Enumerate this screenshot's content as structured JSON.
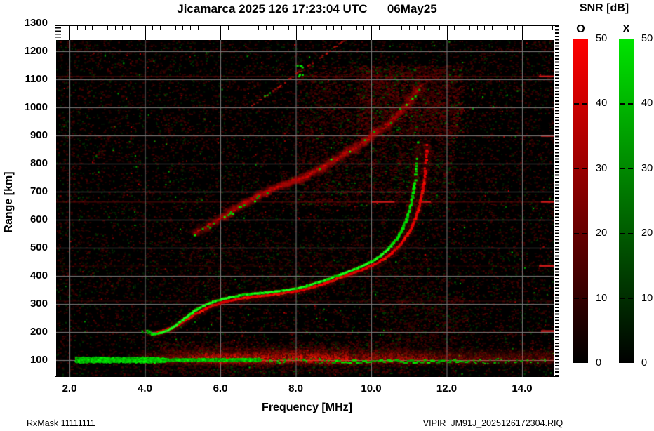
{
  "title": {
    "text": "Jicamarca 2025 126 17:23:04 UTC      06May25"
  },
  "axes": {
    "x": {
      "label": "Frequency [MHz]",
      "ticks": [
        {
          "label": "2.0",
          "mhz": 2
        },
        {
          "label": "4.0",
          "mhz": 4
        },
        {
          "label": "6.0",
          "mhz": 6
        },
        {
          "label": "8.0",
          "mhz": 8
        },
        {
          "label": "10.0",
          "mhz": 10
        },
        {
          "label": "12.0",
          "mhz": 12
        },
        {
          "label": "14.0",
          "mhz": 14
        }
      ],
      "minor_step_mhz": 0.2,
      "range_mhz": [
        1.65,
        14.85
      ]
    },
    "y": {
      "label": "Range [km]",
      "ticks_km": [
        100,
        200,
        300,
        400,
        500,
        600,
        700,
        800,
        900,
        1000,
        1100,
        1200,
        1300
      ],
      "range_km": [
        40,
        1240
      ]
    }
  },
  "colorbar": {
    "title": "SNR [dB]",
    "ticks": [
      50,
      40,
      30,
      20,
      10,
      0
    ],
    "bars": [
      {
        "label": "O",
        "color_top": "#ff0000",
        "color_bottom": "#000000"
      },
      {
        "label": "X",
        "color_top": "#00e400",
        "color_bottom": "#000000"
      }
    ]
  },
  "footer": {
    "left": "RxMask 11111111",
    "right": "VIPIR  JM91J_2025126172304.RIQ"
  },
  "chart_data": {
    "type": "heatmap",
    "title": "Jicamarca 2025 126 17:23:04 UTC 06May25",
    "xlabel": "Frequency [MHz]",
    "ylabel": "Range [km]",
    "xlim": [
      1.65,
      14.85
    ],
    "ylim": [
      40,
      1240
    ],
    "value_label": "SNR [dB]",
    "value_range": [
      0,
      50
    ],
    "legend": {
      "O_mode_color": "red",
      "X_mode_color": "green",
      "position": "right"
    },
    "grid": {
      "km": [
        100,
        200,
        300,
        400,
        500,
        600,
        700,
        800,
        900,
        1000,
        1100,
        1200
      ],
      "mhz": [
        2,
        4,
        6,
        8,
        10,
        12,
        14
      ],
      "color": "#7b7b7b"
    },
    "series": [
      {
        "id": "x_first_hop",
        "name": "X-mode first-hop F trace",
        "color": "#00ff00",
        "points": [
          [
            4.05,
            205
          ],
          [
            4.2,
            192
          ],
          [
            4.4,
            196
          ],
          [
            4.6,
            206
          ],
          [
            4.8,
            222
          ],
          [
            5.0,
            243
          ],
          [
            5.2,
            264
          ],
          [
            5.45,
            287
          ],
          [
            5.7,
            302
          ],
          [
            5.95,
            314
          ],
          [
            6.2,
            322
          ],
          [
            6.5,
            330
          ],
          [
            6.8,
            335
          ],
          [
            7.1,
            339
          ],
          [
            7.4,
            343
          ],
          [
            7.7,
            348
          ],
          [
            8.0,
            355
          ],
          [
            8.3,
            364
          ],
          [
            8.6,
            377
          ],
          [
            8.9,
            391
          ],
          [
            9.2,
            406
          ],
          [
            9.5,
            421
          ],
          [
            9.8,
            437
          ],
          [
            10.0,
            450
          ],
          [
            10.2,
            467
          ],
          [
            10.4,
            489
          ],
          [
            10.55,
            511
          ],
          [
            10.7,
            537
          ],
          [
            10.82,
            566
          ],
          [
            10.92,
            598
          ],
          [
            11.0,
            632
          ],
          [
            11.07,
            668
          ],
          [
            11.12,
            704
          ],
          [
            11.16,
            740
          ],
          [
            11.19,
            776
          ],
          [
            11.21,
            810
          ],
          [
            11.23,
            845
          ],
          [
            11.24,
            878
          ]
        ]
      },
      {
        "id": "o_first_hop",
        "name": "O-mode first-hop F trace",
        "color": "#ff0000",
        "points": [
          [
            4.35,
            200
          ],
          [
            4.55,
            207
          ],
          [
            4.75,
            217
          ],
          [
            4.95,
            231
          ],
          [
            5.15,
            248
          ],
          [
            5.4,
            268
          ],
          [
            5.65,
            286
          ],
          [
            5.9,
            299
          ],
          [
            6.2,
            310
          ],
          [
            6.5,
            318
          ],
          [
            6.8,
            324
          ],
          [
            7.1,
            329
          ],
          [
            7.4,
            333
          ],
          [
            7.7,
            338
          ],
          [
            8.0,
            345
          ],
          [
            8.3,
            354
          ],
          [
            8.6,
            366
          ],
          [
            8.9,
            380
          ],
          [
            9.2,
            395
          ],
          [
            9.5,
            409
          ],
          [
            9.8,
            425
          ],
          [
            10.1,
            442
          ],
          [
            10.3,
            457
          ],
          [
            10.5,
            477
          ],
          [
            10.7,
            501
          ],
          [
            10.87,
            528
          ],
          [
            11.0,
            556
          ],
          [
            11.12,
            589
          ],
          [
            11.22,
            625
          ],
          [
            11.3,
            663
          ],
          [
            11.36,
            701
          ],
          [
            11.4,
            739
          ],
          [
            11.43,
            777
          ],
          [
            11.45,
            813
          ],
          [
            11.46,
            848
          ],
          [
            11.47,
            882
          ]
        ]
      },
      {
        "id": "second_hop",
        "name": "Second-hop diffuse trace",
        "color": "#aa0000",
        "points": [
          [
            5.3,
            552
          ],
          [
            5.6,
            574
          ],
          [
            5.9,
            597
          ],
          [
            6.2,
            621
          ],
          [
            6.5,
            647
          ],
          [
            6.8,
            671
          ],
          [
            7.1,
            694
          ],
          [
            7.4,
            712
          ],
          [
            7.7,
            727
          ],
          [
            8.0,
            741
          ],
          [
            8.3,
            757
          ],
          [
            8.6,
            779
          ],
          [
            8.9,
            804
          ],
          [
            9.2,
            827
          ],
          [
            9.5,
            851
          ],
          [
            9.8,
            875
          ],
          [
            10.0,
            897
          ],
          [
            10.3,
            927
          ],
          [
            10.6,
            961
          ],
          [
            10.9,
            1004
          ],
          [
            11.1,
            1038
          ],
          [
            11.3,
            1078
          ]
        ]
      },
      {
        "id": "third_trace",
        "name": "Faint high-range trace",
        "color": "#991111",
        "points": [
          [
            6.85,
            1008
          ],
          [
            7.2,
            1040
          ],
          [
            7.6,
            1078
          ],
          [
            8.0,
            1118
          ],
          [
            8.4,
            1155
          ],
          [
            8.8,
            1192
          ],
          [
            9.1,
            1222
          ],
          [
            9.3,
            1240
          ]
        ]
      }
    ],
    "critical_freqs": {
      "x_asymptote_mhz": 11.25,
      "o_asymptote_mhz": 11.47
    },
    "bottom_band": {
      "km_center": 104,
      "red_mhz": [
        3.5,
        14.85
      ],
      "green_dense_mhz": [
        2.15,
        7.05
      ],
      "green_run_mhz": [
        8.95,
        12.6
      ]
    },
    "rfi_lines": [
      {
        "km": 1112,
        "alpha": 0.4,
        "bright": [
          [
            14.45,
            14.85
          ]
        ]
      },
      {
        "km": 900,
        "alpha": 0.13,
        "bright": [
          [
            14.5,
            14.85
          ]
        ]
      },
      {
        "km": 665,
        "alpha": 0.36,
        "bright": [
          [
            10.0,
            10.62
          ],
          [
            11.32,
            11.58
          ],
          [
            14.5,
            14.85
          ]
        ]
      },
      {
        "km": 437,
        "alpha": 0.15,
        "bright": [
          [
            14.45,
            14.85
          ]
        ]
      },
      {
        "km": 312,
        "alpha": 0.2,
        "bright": []
      },
      {
        "km": 205,
        "alpha": 0.11,
        "bright": [
          [
            14.5,
            14.85
          ]
        ]
      }
    ],
    "noise_patches": [
      {
        "f": [
          8,
          12.2
        ],
        "km": [
          650,
          1150
        ],
        "n": 2600,
        "v": 66,
        "g": 0.14
      },
      {
        "f": [
          9.6,
          12.4
        ],
        "km": [
          900,
          1150
        ],
        "n": 1700,
        "v": 85,
        "g": 0.1
      },
      {
        "f": [
          4.2,
          11
        ],
        "km": [
          55,
          168
        ],
        "n": 1400,
        "v": 62,
        "g": 0.12
      },
      {
        "f": [
          10.2,
          12.6
        ],
        "km": [
          130,
          330
        ],
        "n": 550,
        "v": 45,
        "g": 0.1
      },
      {
        "f": [
          5.0,
          11.5
        ],
        "km": [
          330,
          520
        ],
        "n": 700,
        "v": 40,
        "g": 0.15
      }
    ]
  }
}
